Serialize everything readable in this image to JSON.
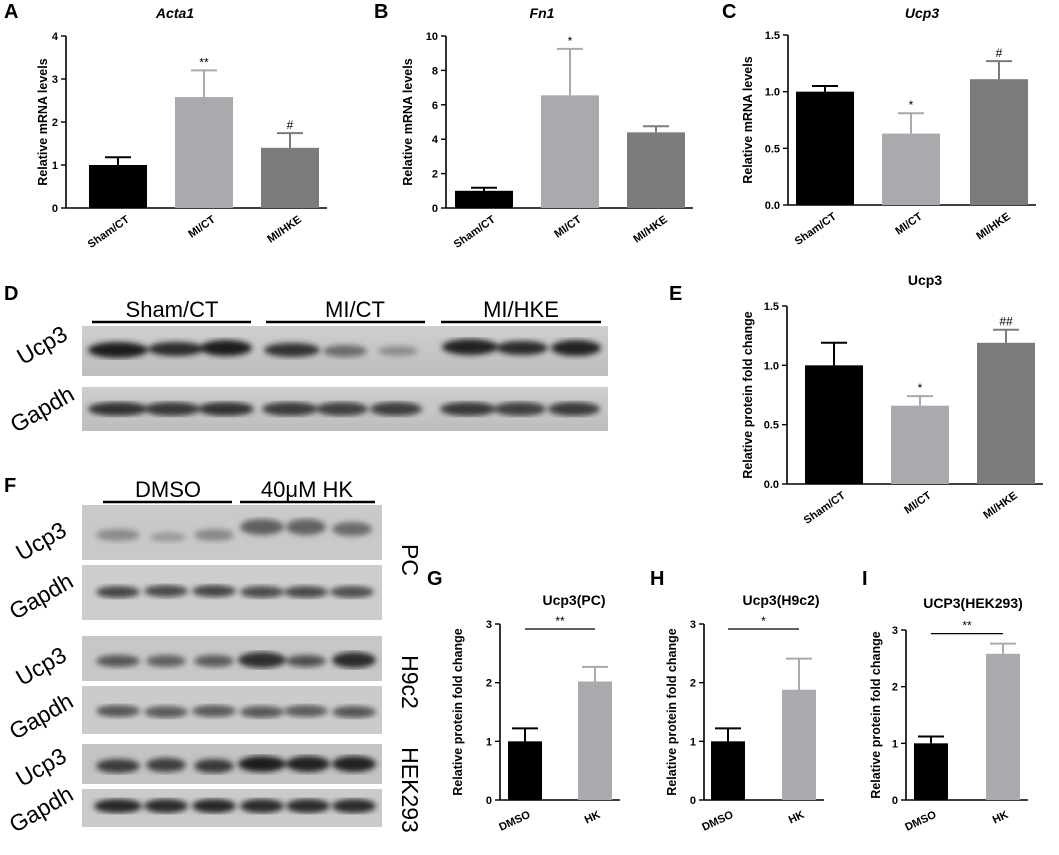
{
  "figure": {
    "blot_D": {
      "panel_label": "D",
      "groups": [
        "Sham/CT",
        "MI/CT",
        "MI/HKE"
      ],
      "rows": [
        "Ucp3",
        "Gapdh"
      ]
    },
    "blot_F": {
      "panel_label": "F",
      "groups": [
        "DMSO",
        "40μM HK"
      ],
      "sections": [
        {
          "rows": [
            "Ucp3",
            "Gapdh"
          ],
          "cell": "PC"
        },
        {
          "rows": [
            "Ucp3",
            "Gapdh"
          ],
          "cell": "H9c2"
        },
        {
          "rows": [
            "Ucp3",
            "Gapdh"
          ],
          "cell": "HEK293"
        }
      ]
    }
  },
  "chart_data": [
    {
      "panel": "A",
      "type": "bar",
      "title": "Acta1",
      "title_italic": true,
      "ylabel": "Relative mRNA levels",
      "categories": [
        "Sham/CT",
        "MI/CT",
        "MI/HKE"
      ],
      "values": [
        1.0,
        2.58,
        1.4
      ],
      "errors": [
        0.18,
        0.62,
        0.34
      ],
      "sig": [
        "",
        "**",
        "#"
      ],
      "ylim": [
        0,
        4
      ],
      "yticks": [
        "0",
        "1",
        "2",
        "3",
        "4"
      ],
      "colors": [
        "#000000",
        "#a9a9ae",
        "#7b7b7b"
      ],
      "rot": true
    },
    {
      "panel": "B",
      "type": "bar",
      "title": "Fn1",
      "title_italic": true,
      "ylabel": "Relative mRNA levels",
      "categories": [
        "Sham/CT",
        "MI/CT",
        "MI/HKE"
      ],
      "values": [
        1.0,
        6.55,
        4.4
      ],
      "errors": [
        0.18,
        2.7,
        0.35
      ],
      "sig": [
        "",
        "*",
        ""
      ],
      "ylim": [
        0,
        10
      ],
      "yticks": [
        "0",
        "2",
        "4",
        "6",
        "8",
        "10"
      ],
      "colors": [
        "#000000",
        "#a9a9ae",
        "#7b7b7b"
      ],
      "rot": true
    },
    {
      "panel": "C",
      "type": "bar",
      "title": "Ucp3",
      "title_italic": true,
      "ylabel": "Relative mRNA levels",
      "categories": [
        "Sham/CT",
        "MI/CT",
        "MI/HKE"
      ],
      "values": [
        1.0,
        0.63,
        1.11
      ],
      "errors": [
        0.05,
        0.18,
        0.16
      ],
      "sig": [
        "",
        "*",
        "#"
      ],
      "ylim": [
        0,
        1.5
      ],
      "yticks": [
        "0.0",
        "0.5",
        "1.0",
        "1.5"
      ],
      "colors": [
        "#000000",
        "#a9a9ae",
        "#7b7b7b"
      ],
      "rot": true
    },
    {
      "panel": "E",
      "type": "bar",
      "title": "Ucp3",
      "title_italic": false,
      "ylabel": "Relative protein fold change",
      "categories": [
        "Sham/CT",
        "MI/CT",
        "MI/HKE"
      ],
      "values": [
        1.0,
        0.66,
        1.19
      ],
      "errors": [
        0.19,
        0.08,
        0.11
      ],
      "sig": [
        "",
        "*",
        "##"
      ],
      "ylim": [
        0,
        1.5
      ],
      "yticks": [
        "0.0",
        "0.5",
        "1.0",
        "1.5"
      ],
      "colors": [
        "#000000",
        "#a9a9ae",
        "#7b7b7b"
      ],
      "rot": true
    },
    {
      "panel": "G",
      "type": "bar",
      "title": "Ucp3(PC)",
      "title_italic": false,
      "ylabel": "Relative protein fold change",
      "categories": [
        "DMSO",
        "HK"
      ],
      "values": [
        1.0,
        2.02
      ],
      "errors": [
        0.22,
        0.25
      ],
      "bracket": "**",
      "ylim": [
        0,
        3
      ],
      "yticks": [
        "0",
        "1",
        "2",
        "3"
      ],
      "colors": [
        "#000000",
        "#a9a9ae"
      ],
      "rot": false
    },
    {
      "panel": "H",
      "type": "bar",
      "title": "Ucp3(H9c2)",
      "title_italic": false,
      "ylabel": "Relative protein fold change",
      "categories": [
        "DMSO",
        "HK"
      ],
      "values": [
        1.0,
        1.88
      ],
      "errors": [
        0.22,
        0.53
      ],
      "bracket": "*",
      "ylim": [
        0,
        3
      ],
      "yticks": [
        "0",
        "1",
        "2",
        "3"
      ],
      "colors": [
        "#000000",
        "#a9a9ae"
      ],
      "rot": false
    },
    {
      "panel": "I",
      "type": "bar",
      "title": "UCP3(HEK293)",
      "title_italic": false,
      "ylabel": "Relative protein fold change",
      "categories": [
        "DMSO",
        "HK"
      ],
      "values": [
        1.0,
        2.58
      ],
      "errors": [
        0.12,
        0.18
      ],
      "bracket": "**",
      "ylim": [
        0,
        3
      ],
      "yticks": [
        "0",
        "1",
        "2",
        "3"
      ],
      "colors": [
        "#000000",
        "#a9a9ae"
      ],
      "rot": false
    }
  ]
}
